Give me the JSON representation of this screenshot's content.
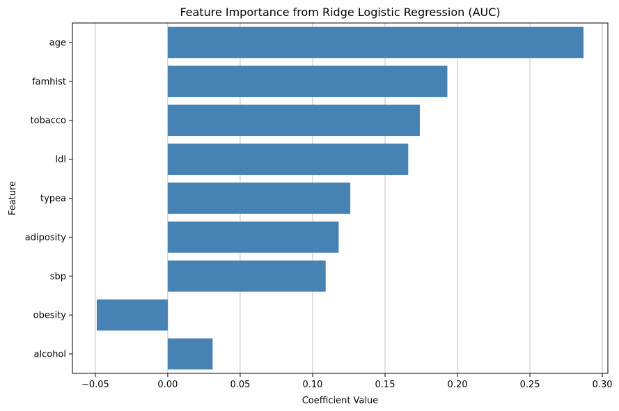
{
  "chart_data": {
    "type": "bar",
    "orientation": "horizontal",
    "title": "Feature Importance from Ridge Logistic Regression (AUC)",
    "xlabel": "Coefficient Value",
    "ylabel": "Feature",
    "categories": [
      "age",
      "famhist",
      "tobacco",
      "ldl",
      "typea",
      "adiposity",
      "sbp",
      "obesity",
      "alcohol"
    ],
    "values": [
      0.287,
      0.193,
      0.174,
      0.166,
      0.126,
      0.118,
      0.109,
      -0.049,
      0.031
    ],
    "xlim": [
      -0.0658,
      0.3038
    ],
    "xticks": [
      -0.05,
      0.0,
      0.05,
      0.1,
      0.15,
      0.2,
      0.25,
      0.3
    ],
    "xtick_labels": [
      "−0.05",
      "0.00",
      "0.05",
      "0.10",
      "0.15",
      "0.20",
      "0.25",
      "0.30"
    ],
    "grid": "x-axis vertical lines",
    "bar_color": "#4682b4",
    "grid_color": "#b0b0b0",
    "legend": "none"
  }
}
